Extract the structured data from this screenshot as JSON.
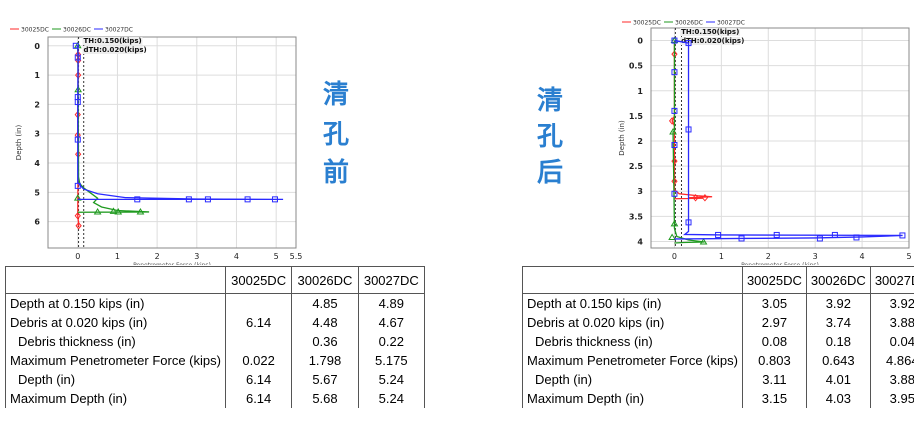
{
  "chart_data": [
    {
      "type": "line",
      "title": "",
      "xlabel": "Penetrometer Force (kips)",
      "ylabel": "Depth (in)",
      "xlim": [
        -0.75,
        5.5
      ],
      "ylim": [
        6.9,
        -0.3
      ],
      "y_inverted": true,
      "grid": true,
      "legend": "top-left",
      "xticks": [
        "0",
        "1",
        "2",
        "3",
        "4",
        "5",
        "5.5"
      ],
      "yticks": [
        "0",
        "1",
        "2",
        "3",
        "4",
        "5",
        "6"
      ],
      "thresholds": [
        {
          "label": "TH:0.150(kips)",
          "x": 0.15
        },
        {
          "label": "dTH:0.020(kips)",
          "x": 0.02
        }
      ],
      "series": [
        {
          "name": "30025DC",
          "color": "#ff2a2a",
          "marker": "diamond",
          "points": [
            [
              0,
              0
            ],
            [
              0.01,
              0.3
            ],
            [
              0.01,
              0.5
            ],
            [
              0.01,
              1.0
            ],
            [
              0.0,
              2.35
            ],
            [
              0.0,
              3.05
            ],
            [
              0.01,
              3.7
            ],
            [
              0.0,
              5.8
            ],
            [
              0.02,
              6.05
            ],
            [
              0.022,
              6.14
            ],
            [
              0,
              6.14
            ]
          ],
          "markers": [
            [
              0.01,
              0.3
            ],
            [
              0.01,
              0.5
            ],
            [
              0.01,
              1.0
            ],
            [
              0,
              2.35
            ],
            [
              0,
              3.05
            ],
            [
              0.01,
              3.7
            ],
            [
              0,
              5.8
            ],
            [
              0.022,
              6.14
            ]
          ]
        },
        {
          "name": "30026DC",
          "color": "#1f9a1f",
          "marker": "triangle",
          "points": [
            [
              0,
              0
            ],
            [
              0.01,
              1.5
            ],
            [
              0.02,
              4.48
            ],
            [
              0.05,
              4.7
            ],
            [
              0.15,
              4.85
            ],
            [
              0.3,
              5.0
            ],
            [
              0.5,
              5.2
            ],
            [
              0.4,
              5.35
            ],
            [
              0.6,
              5.5
            ],
            [
              1.0,
              5.62
            ],
            [
              1.798,
              5.67
            ],
            [
              0,
              5.68
            ]
          ],
          "markers": [
            [
              0,
              0
            ],
            [
              0.01,
              1.5
            ],
            [
              0,
              5.2
            ],
            [
              0.5,
              5.67
            ],
            [
              1.02,
              5.67
            ],
            [
              1.58,
              5.67
            ],
            [
              0.9,
              5.65
            ]
          ]
        },
        {
          "name": "30027DC",
          "color": "#2a2aff",
          "marker": "square",
          "points": [
            [
              -0.05,
              0
            ],
            [
              0,
              0
            ],
            [
              0.01,
              0.4
            ],
            [
              0,
              1.8
            ],
            [
              0,
              3.2
            ],
            [
              0,
              4.67
            ],
            [
              0.05,
              4.75
            ],
            [
              0.15,
              4.89
            ],
            [
              0.5,
              5.05
            ],
            [
              1.2,
              5.18
            ],
            [
              3.0,
              5.23
            ],
            [
              5.175,
              5.24
            ],
            [
              0,
              5.24
            ]
          ],
          "markers": [
            [
              -0.05,
              0
            ],
            [
              0,
              0.4
            ],
            [
              0,
              1.75
            ],
            [
              0,
              1.92
            ],
            [
              0,
              3.2
            ],
            [
              0,
              4.78
            ],
            [
              1.5,
              5.24
            ],
            [
              2.8,
              5.24
            ],
            [
              3.28,
              5.24
            ],
            [
              4.28,
              5.24
            ],
            [
              4.97,
              5.24
            ]
          ]
        }
      ]
    },
    {
      "type": "line",
      "title": "",
      "xlabel": "Penetrometer Force (kips)",
      "ylabel": "Depth (in)",
      "xlim": [
        -0.5,
        5
      ],
      "ylim": [
        4.13,
        -0.25
      ],
      "y_inverted": true,
      "grid": true,
      "legend": "top-left",
      "xticks": [
        "0",
        "1",
        "2",
        "3",
        "4",
        "5"
      ],
      "yticks": [
        "0",
        "0.5",
        "1",
        "1.5",
        "2",
        "2.5",
        "3",
        "3.5",
        "4"
      ],
      "thresholds": [
        {
          "label": "TH:0.150(kips)",
          "x": 0.15
        },
        {
          "label": "dTH:0.020(kips)",
          "x": 0.02
        }
      ],
      "series": [
        {
          "name": "30025DC",
          "color": "#ff2a2a",
          "marker": "diamond",
          "points": [
            [
              0,
              0
            ],
            [
              0,
              1.5
            ],
            [
              -0.05,
              1.6
            ],
            [
              0,
              1.7
            ],
            [
              0,
              2.97
            ],
            [
              0.1,
              3.05
            ],
            [
              0.5,
              3.09
            ],
            [
              0.803,
              3.11
            ],
            [
              0.3,
              3.13
            ],
            [
              0.6,
              3.14
            ],
            [
              0,
              3.15
            ]
          ],
          "markers": [
            [
              0,
              0.27
            ],
            [
              -0.05,
              1.6
            ],
            [
              0,
              2.4
            ],
            [
              0,
              2.8
            ],
            [
              0.45,
              3.13
            ],
            [
              0.65,
              3.13
            ]
          ]
        },
        {
          "name": "30026DC",
          "color": "#1f9a1f",
          "marker": "triangle",
          "points": [
            [
              0,
              0
            ],
            [
              0,
              1.8
            ],
            [
              -0.03,
              1.82
            ],
            [
              0,
              3.74
            ],
            [
              0.05,
              3.9
            ],
            [
              0.3,
              3.97
            ],
            [
              0.643,
              4.01
            ],
            [
              0.2,
              4.02
            ],
            [
              0,
              4.03
            ]
          ],
          "markers": [
            [
              0,
              0
            ],
            [
              -0.03,
              1.82
            ],
            [
              0,
              3.65
            ],
            [
              -0.05,
              3.92
            ],
            [
              0.62,
              4.01
            ]
          ]
        },
        {
          "name": "30027DC",
          "color": "#2a2aff",
          "marker": "square",
          "points": [
            [
              0,
              0
            ],
            [
              0.3,
              0.05
            ],
            [
              0.3,
              3.6
            ],
            [
              0.3,
              3.8
            ],
            [
              0.22,
              3.86
            ],
            [
              1.0,
              3.87
            ],
            [
              4.864,
              3.88
            ],
            [
              4.0,
              3.91
            ],
            [
              3.0,
              3.93
            ],
            [
              1.4,
              3.94
            ],
            [
              0.2,
              3.95
            ],
            [
              0,
              3.95
            ]
          ],
          "markers": [
            [
              0,
              0
            ],
            [
              0,
              0.63
            ],
            [
              0,
              1.4
            ],
            [
              0,
              2.08
            ],
            [
              0,
              3.05
            ],
            [
              0.3,
              0.05
            ],
            [
              0.3,
              1.77
            ],
            [
              0.3,
              3.62
            ],
            [
              0.93,
              3.87
            ],
            [
              2.18,
              3.87
            ],
            [
              3.42,
              3.87
            ],
            [
              4.86,
              3.88
            ],
            [
              1.43,
              3.94
            ],
            [
              3.1,
              3.94
            ],
            [
              3.88,
              3.92
            ]
          ]
        }
      ]
    }
  ],
  "labels": {
    "before": [
      "清",
      "孔",
      "前"
    ],
    "after": [
      "清",
      "孔",
      "后"
    ]
  },
  "tables": [
    {
      "headers": [
        "",
        "30025DC",
        "30026DC",
        "30027DC"
      ],
      "rows": [
        [
          "Depth at 0.150 kips (in)",
          "",
          "4.85",
          "4.89"
        ],
        [
          "Debris at 0.020 kips (in)",
          "6.14",
          "4.48",
          "4.67"
        ],
        [
          "Debris thickness (in)",
          "",
          "0.36",
          "0.22"
        ],
        [
          "Maximum Penetrometer Force (kips)",
          "0.022",
          "1.798",
          "5.175"
        ],
        [
          "Depth (in)",
          "6.14",
          "5.67",
          "5.24"
        ],
        [
          "Maximum Depth (in)",
          "6.14",
          "5.68",
          "5.24"
        ]
      ]
    },
    {
      "headers": [
        "",
        "30025DC",
        "30026DC",
        "30027DC"
      ],
      "rows": [
        [
          "Depth at 0.150 kips (in)",
          "3.05",
          "3.92",
          "3.92"
        ],
        [
          "Debris at 0.020 kips (in)",
          "2.97",
          "3.74",
          "3.88"
        ],
        [
          "Debris thickness (in)",
          "0.08",
          "0.18",
          "0.04"
        ],
        [
          "Maximum Penetrometer Force (kips)",
          "0.803",
          "0.643",
          "4.864"
        ],
        [
          "Depth (in)",
          "3.11",
          "4.01",
          "3.88"
        ],
        [
          "Maximum Depth (in)",
          "3.15",
          "4.03",
          "3.95"
        ]
      ]
    }
  ]
}
